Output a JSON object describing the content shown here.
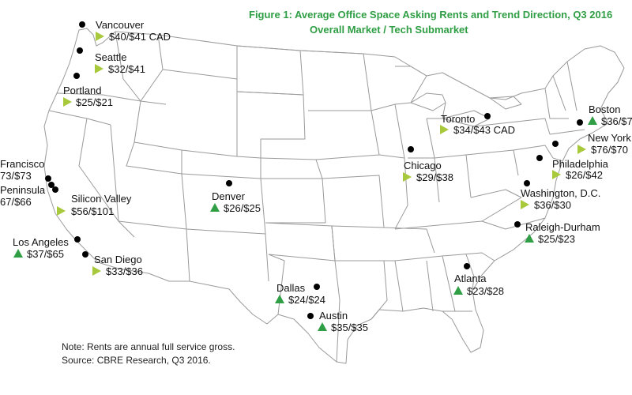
{
  "title": {
    "line1": "Figure 1: Average Office Space Asking Rents and Trend Direction, Q3 2016",
    "line2": "Overall Market / Tech Submarket"
  },
  "notes": {
    "line1": "Note: Rents are annual full service gross.",
    "line2": "Source: CBRE Research, Q3 2016."
  },
  "colors": {
    "title": "#2f9e44",
    "trend_flat": "#a7c93b",
    "trend_up": "#2f9e44",
    "marker": "#000000",
    "border": "#9a9a9a"
  },
  "markets": [
    {
      "name": "Vancouver",
      "rent": "$40/$41 CAD",
      "trend": "flat"
    },
    {
      "name": "Seattle",
      "rent": "$32/$41",
      "trend": "flat"
    },
    {
      "name": "Portland",
      "rent": "$25/$21",
      "trend": "flat"
    },
    {
      "name": "Francisco",
      "rent": "73/$73",
      "trend": "none"
    },
    {
      "name": "Peninsula",
      "rent": "67/$66",
      "trend": "none"
    },
    {
      "name": "Silicon Valley",
      "rent": "$56/$101",
      "trend": "flat"
    },
    {
      "name": "Los Angeles",
      "rent": "$37/$65",
      "trend": "up"
    },
    {
      "name": "San Diego",
      "rent": "$33/$36",
      "trend": "flat"
    },
    {
      "name": "Denver",
      "rent": "$26/$25",
      "trend": "up"
    },
    {
      "name": "Dallas",
      "rent": "$24/$24",
      "trend": "up"
    },
    {
      "name": "Austin",
      "rent": "$35/$35",
      "trend": "up"
    },
    {
      "name": "Chicago",
      "rent": "$29/$38",
      "trend": "flat"
    },
    {
      "name": "Toronto",
      "rent": "$34/$43 CAD",
      "trend": "flat"
    },
    {
      "name": "Atlanta",
      "rent": "$23/$28",
      "trend": "up"
    },
    {
      "name": "Boston",
      "rent": "$36/$7",
      "trend": "up"
    },
    {
      "name": "New York",
      "rent": "$76/$70",
      "trend": "flat"
    },
    {
      "name": "Philadelphia",
      "rent": "$26/$42",
      "trend": "flat"
    },
    {
      "name": "Washington, D.C.",
      "rent": "$36/$30",
      "trend": "flat"
    },
    {
      "name": "Raleigh-Durham",
      "rent": "$25/$23",
      "trend": "up"
    }
  ]
}
